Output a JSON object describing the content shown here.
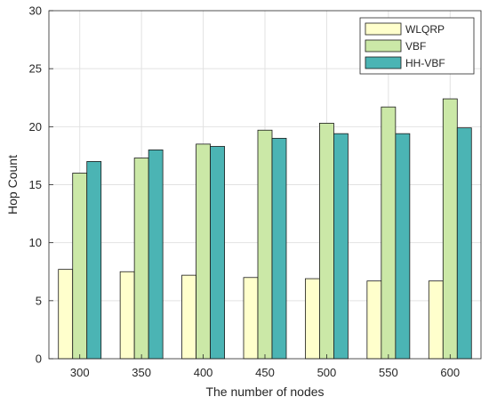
{
  "chart_data": {
    "type": "bar",
    "xlabel": "The number of nodes",
    "ylabel": "Hop Count",
    "categories": [
      "300",
      "350",
      "400",
      "450",
      "500",
      "550",
      "600"
    ],
    "ylim": [
      0,
      30
    ],
    "yticks": [
      "0",
      "5",
      "10",
      "15",
      "20",
      "25",
      "30"
    ],
    "grid": true,
    "legend_position": "top-right",
    "series": [
      {
        "name": "WLQRP",
        "color": "#ffffcc",
        "values": [
          7.7,
          7.5,
          7.2,
          7.0,
          6.9,
          6.7,
          6.7
        ]
      },
      {
        "name": "VBF",
        "color": "#cbe8a7",
        "values": [
          16.0,
          17.3,
          18.5,
          19.7,
          20.3,
          21.7,
          22.4
        ]
      },
      {
        "name": "HH-VBF",
        "color": "#4bb4b4",
        "values": [
          17.0,
          18.0,
          18.3,
          19.0,
          19.4,
          19.4,
          19.9
        ]
      }
    ]
  }
}
